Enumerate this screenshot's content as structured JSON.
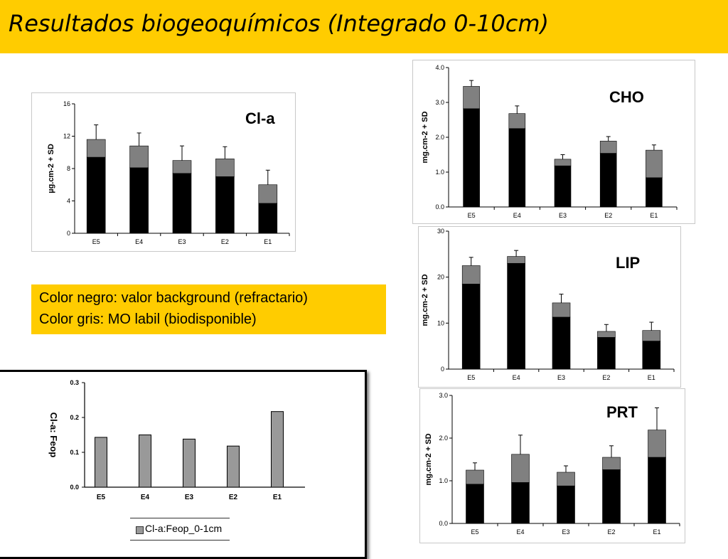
{
  "title": "Resultados biogeoquímicos (Integrado 0-10cm)",
  "legend_note": {
    "line1": "Color negro: valor background (refractario)",
    "line2": "Color gris: MO labil (biodisponible)"
  },
  "colors": {
    "title_bar": "#ffcc00",
    "refractory": "#000000",
    "labile": "#808080",
    "ratio_bar": "#999999"
  },
  "chart_data": [
    {
      "id": "cla",
      "type": "bar",
      "stacked": true,
      "label": "Cl-a",
      "ylabel": "µg.cm-2 + SD",
      "categories": [
        "E5",
        "E4",
        "E3",
        "E2",
        "E1"
      ],
      "yticks": [
        "0",
        "4",
        "8",
        "12",
        "16"
      ],
      "ylim": [
        0,
        16
      ],
      "series": [
        {
          "role": "refractory",
          "values": [
            9.4,
            8.1,
            7.4,
            7.0,
            3.7
          ]
        },
        {
          "role": "labile",
          "values": [
            2.2,
            2.7,
            1.6,
            2.2,
            2.3
          ]
        }
      ],
      "error": [
        1.8,
        1.6,
        1.8,
        1.5,
        1.8
      ]
    },
    {
      "id": "cho",
      "type": "bar",
      "stacked": true,
      "label": "CHO",
      "ylabel": "mg.cm-2 + SD",
      "categories": [
        "E5",
        "E4",
        "E3",
        "E2",
        "E1"
      ],
      "yticks": [
        "0.0",
        "1.0",
        "2.0",
        "3.0",
        "4.0"
      ],
      "ylim": [
        0,
        4
      ],
      "series": [
        {
          "role": "refractory",
          "values": [
            2.82,
            2.25,
            1.18,
            1.54,
            0.84
          ]
        },
        {
          "role": "labile",
          "values": [
            0.64,
            0.43,
            0.19,
            0.35,
            0.79
          ]
        }
      ],
      "error": [
        0.17,
        0.22,
        0.13,
        0.13,
        0.15
      ]
    },
    {
      "id": "lip",
      "type": "bar",
      "stacked": true,
      "label": "LIP",
      "ylabel": "mg.cm-2 + SD",
      "categories": [
        "E5",
        "E4",
        "E3",
        "E2",
        "E1"
      ],
      "yticks": [
        "0",
        "10",
        "20",
        "30"
      ],
      "ylim": [
        0,
        30
      ],
      "series": [
        {
          "role": "refractory",
          "values": [
            18.5,
            23.0,
            11.3,
            6.9,
            6.1
          ]
        },
        {
          "role": "labile",
          "values": [
            4.0,
            1.5,
            3.1,
            1.3,
            2.3
          ]
        }
      ],
      "error": [
        1.8,
        1.3,
        1.9,
        1.5,
        1.8
      ]
    },
    {
      "id": "prt",
      "type": "bar",
      "stacked": true,
      "label": "PRT",
      "ylabel": "mg.cm-2 + SD",
      "categories": [
        "E5",
        "E4",
        "E3",
        "E2",
        "E1"
      ],
      "yticks": [
        "0.0",
        "1.0",
        "2.0",
        "3.0"
      ],
      "ylim": [
        0,
        3
      ],
      "series": [
        {
          "role": "refractory",
          "values": [
            0.92,
            0.96,
            0.88,
            1.26,
            1.55
          ]
        },
        {
          "role": "labile",
          "values": [
            0.33,
            0.66,
            0.32,
            0.29,
            0.64
          ]
        }
      ],
      "error": [
        0.17,
        0.45,
        0.15,
        0.27,
        0.52
      ]
    },
    {
      "id": "ratio",
      "type": "bar",
      "label": "Cl-a: Feop",
      "ylabel": "Cl-a: Feop",
      "categories": [
        "E5",
        "E4",
        "E3",
        "E2",
        "E1"
      ],
      "yticks": [
        "0.0",
        "0.1",
        "0.2",
        "0.3"
      ],
      "ylim": [
        0,
        0.3
      ],
      "series": [
        {
          "name": "Cl-a:Feop_0-1cm",
          "values": [
            0.143,
            0.15,
            0.138,
            0.118,
            0.217
          ]
        }
      ]
    }
  ]
}
